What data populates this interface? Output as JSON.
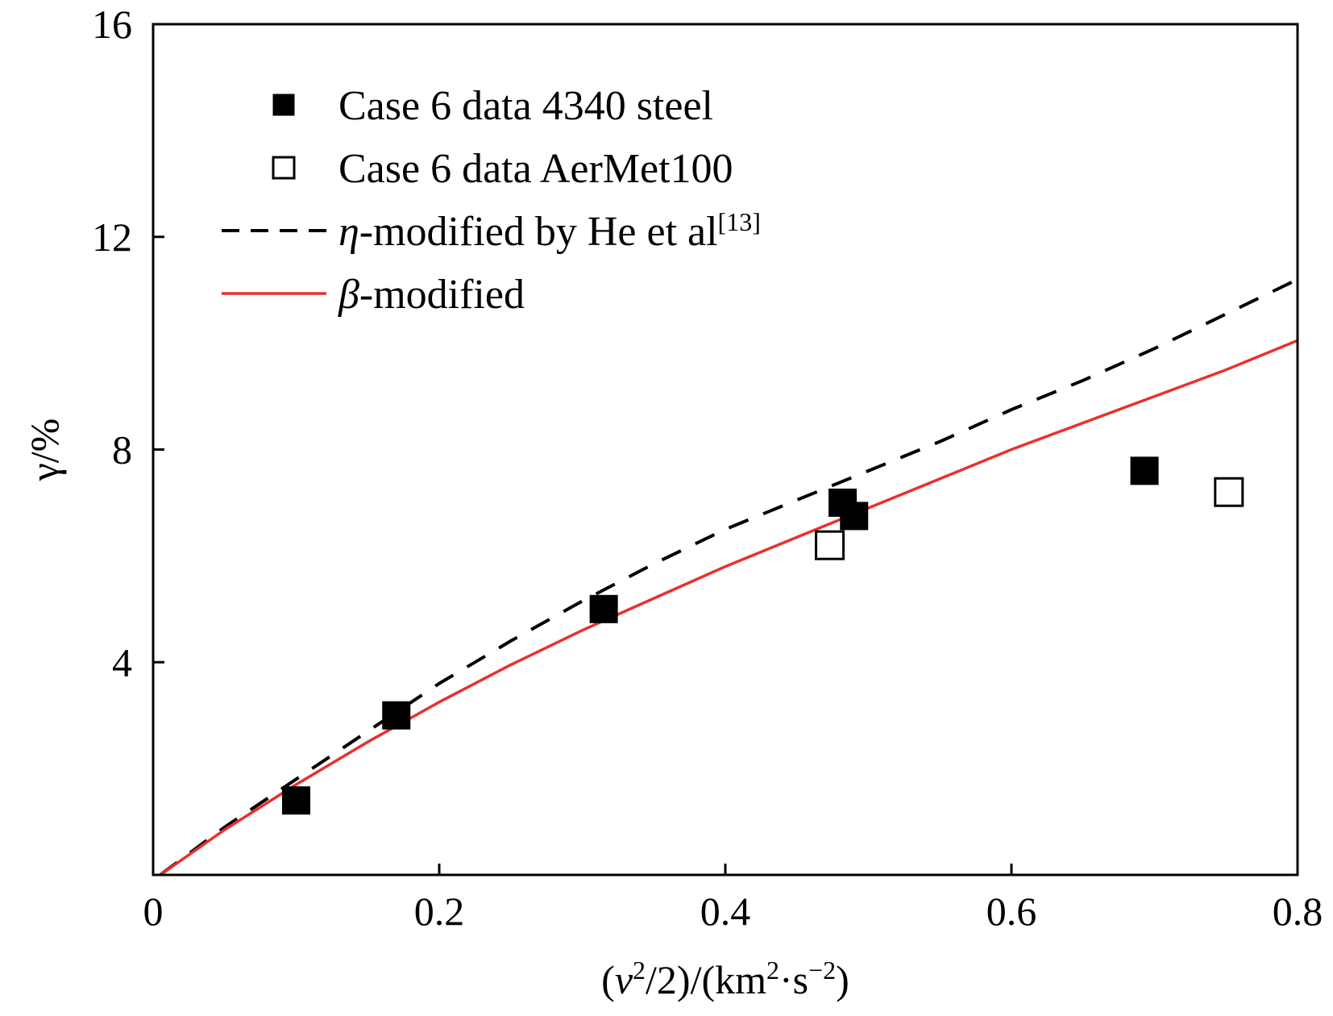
{
  "chart_data": {
    "type": "scatter",
    "xlabel": {
      "open": "(",
      "var": "v",
      "sup1": "2",
      "mid": "/2)/(km",
      "sup2": "2",
      "dot": "·s",
      "sup3": "−2",
      "close": ")"
    },
    "ylabel": "γ/%",
    "xlim": [
      0,
      0.8
    ],
    "ylim": [
      0,
      16
    ],
    "x_ticks": [
      {
        "value": 0,
        "label": "0"
      },
      {
        "value": 0.2,
        "label": "0.2"
      },
      {
        "value": 0.4,
        "label": "0.4"
      },
      {
        "value": 0.6,
        "label": "0.6"
      },
      {
        "value": 0.8,
        "label": "0.8"
      }
    ],
    "y_ticks": [
      {
        "value": 4,
        "label": "4"
      },
      {
        "value": 8,
        "label": "8"
      },
      {
        "value": 12,
        "label": "12"
      },
      {
        "value": 16,
        "label": "16"
      }
    ],
    "grid": false,
    "legend_position": "top-left",
    "series": [
      {
        "name": "Case 6 data 4340 steel",
        "kind": "scatter",
        "marker": "filled-square",
        "color": "#000000",
        "points": [
          {
            "x": 0.1,
            "y": 1.4
          },
          {
            "x": 0.17,
            "y": 3.0
          },
          {
            "x": 0.315,
            "y": 5.0
          },
          {
            "x": 0.482,
            "y": 7.0
          },
          {
            "x": 0.49,
            "y": 6.75
          },
          {
            "x": 0.693,
            "y": 7.6
          }
        ]
      },
      {
        "name": "Case 6 data AerMet100",
        "kind": "scatter",
        "marker": "open-square",
        "color": "#000000",
        "points": [
          {
            "x": 0.473,
            "y": 6.2
          },
          {
            "x": 0.752,
            "y": 7.2
          }
        ]
      },
      {
        "name_prefix": "η",
        "name_main": "-modified by He et al",
        "name_sup": "[13]",
        "kind": "line",
        "style": "dashed",
        "color": "#000000",
        "points": [
          {
            "x": 0.005,
            "y": 0.0
          },
          {
            "x": 0.05,
            "y": 0.9
          },
          {
            "x": 0.1,
            "y": 1.8
          },
          {
            "x": 0.15,
            "y": 2.7
          },
          {
            "x": 0.2,
            "y": 3.6
          },
          {
            "x": 0.25,
            "y": 4.4
          },
          {
            "x": 0.3,
            "y": 5.15
          },
          {
            "x": 0.35,
            "y": 5.85
          },
          {
            "x": 0.4,
            "y": 6.5
          },
          {
            "x": 0.45,
            "y": 7.05
          },
          {
            "x": 0.5,
            "y": 7.6
          },
          {
            "x": 0.55,
            "y": 8.15
          },
          {
            "x": 0.6,
            "y": 8.75
          },
          {
            "x": 0.65,
            "y": 9.3
          },
          {
            "x": 0.7,
            "y": 9.9
          },
          {
            "x": 0.75,
            "y": 10.55
          },
          {
            "x": 0.8,
            "y": 11.2
          }
        ]
      },
      {
        "name_prefix": "β",
        "name_main": "-modified",
        "kind": "line",
        "style": "solid",
        "color": "#e8312f",
        "points": [
          {
            "x": 0.005,
            "y": 0.0
          },
          {
            "x": 0.05,
            "y": 0.85
          },
          {
            "x": 0.1,
            "y": 1.7
          },
          {
            "x": 0.15,
            "y": 2.5
          },
          {
            "x": 0.2,
            "y": 3.25
          },
          {
            "x": 0.25,
            "y": 3.95
          },
          {
            "x": 0.3,
            "y": 4.6
          },
          {
            "x": 0.35,
            "y": 5.2
          },
          {
            "x": 0.4,
            "y": 5.8
          },
          {
            "x": 0.45,
            "y": 6.35
          },
          {
            "x": 0.5,
            "y": 6.9
          },
          {
            "x": 0.55,
            "y": 7.45
          },
          {
            "x": 0.6,
            "y": 8.0
          },
          {
            "x": 0.65,
            "y": 8.5
          },
          {
            "x": 0.7,
            "y": 9.0
          },
          {
            "x": 0.75,
            "y": 9.5
          },
          {
            "x": 0.8,
            "y": 10.05
          }
        ]
      }
    ]
  }
}
